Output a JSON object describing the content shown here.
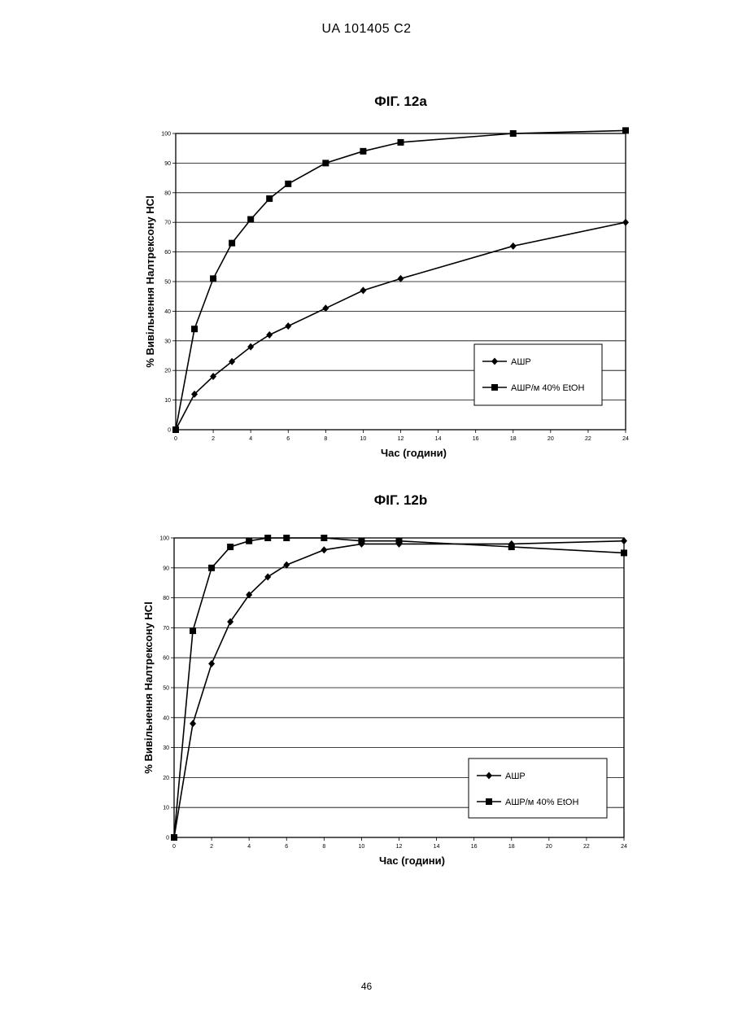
{
  "header": "UA   101405   C2",
  "page_number": "46",
  "chart_data": [
    {
      "type": "line",
      "title": "ФІГ. 12а",
      "xlabel": "Час (години)",
      "ylabel": "% Вивільнення Налтрексону HCl",
      "xlim": [
        0,
        24
      ],
      "ylim": [
        0,
        100
      ],
      "x_ticks": [
        0,
        2,
        4,
        6,
        8,
        10,
        12,
        14,
        16,
        18,
        20,
        22,
        24
      ],
      "y_ticks": [
        0,
        10,
        20,
        30,
        40,
        50,
        60,
        70,
        80,
        90,
        100
      ],
      "grid": "horizontal",
      "legend_position": "bottom-right",
      "series": [
        {
          "name": "АШР",
          "marker": "diamond",
          "x": [
            0,
            1,
            2,
            3,
            4,
            5,
            6,
            8,
            10,
            12,
            18,
            24
          ],
          "y": [
            0,
            12,
            18,
            23,
            28,
            32,
            35,
            41,
            47,
            51,
            62,
            70
          ]
        },
        {
          "name": "АШР/м 40% EtOH",
          "marker": "square",
          "x": [
            0,
            1,
            2,
            3,
            4,
            5,
            6,
            8,
            10,
            12,
            18,
            24
          ],
          "y": [
            0,
            34,
            51,
            63,
            71,
            78,
            83,
            90,
            94,
            97,
            100,
            101
          ]
        }
      ]
    },
    {
      "type": "line",
      "title": "ФІГ. 12b",
      "xlabel": "Час (години)",
      "ylabel": "% Вивільнення Налтрексону HCl",
      "xlim": [
        0,
        24
      ],
      "ylim": [
        0,
        100
      ],
      "x_ticks": [
        0,
        2,
        4,
        6,
        8,
        10,
        12,
        14,
        16,
        18,
        20,
        22,
        24
      ],
      "y_ticks": [
        0,
        10,
        20,
        30,
        40,
        50,
        60,
        70,
        80,
        90,
        100
      ],
      "grid": "horizontal",
      "legend_position": "bottom-right",
      "series": [
        {
          "name": "АШР",
          "marker": "diamond",
          "x": [
            0,
            1,
            2,
            3,
            4,
            5,
            6,
            8,
            10,
            12,
            18,
            24
          ],
          "y": [
            0,
            38,
            58,
            72,
            81,
            87,
            91,
            96,
            98,
            98,
            98,
            99
          ]
        },
        {
          "name": "АШР/м 40% EtOH",
          "marker": "square",
          "x": [
            0,
            1,
            2,
            3,
            4,
            5,
            6,
            8,
            10,
            12,
            18,
            24
          ],
          "y": [
            0,
            69,
            90,
            97,
            99,
            100,
            100,
            100,
            99,
            99,
            97,
            95
          ]
        }
      ]
    }
  ]
}
